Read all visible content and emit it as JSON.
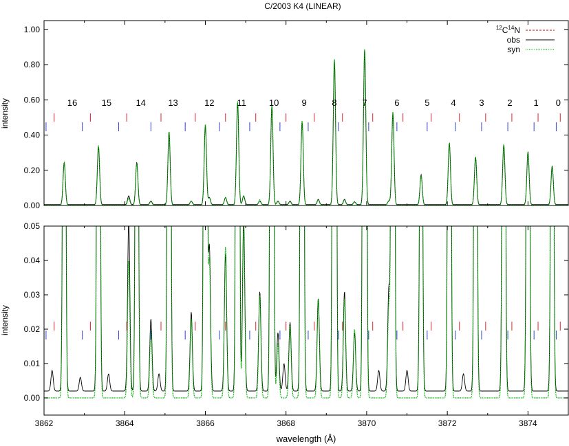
{
  "title": "C/2003 K4 (LINEAR)",
  "colors": {
    "c12n14": "#cc0000",
    "obs": "#000000",
    "syn": "#00b000",
    "marker_red": "#e0202c",
    "marker_blue": "#3040c8"
  },
  "chart_data": [
    {
      "type": "line",
      "panel": "top",
      "xlim": [
        3862,
        3875
      ],
      "ylim": [
        0,
        1.05
      ],
      "xlabel": "",
      "ylabel": "intensity",
      "x_ticks": [
        3862,
        3864,
        3866,
        3868,
        3870,
        3872,
        3874
      ],
      "y_ticks": [
        "0.00",
        "0.20",
        "0.40",
        "0.60",
        "0.80",
        "1.00"
      ],
      "y_tick_values": [
        0,
        0.2,
        0.4,
        0.6,
        0.8,
        1.0
      ],
      "legend_position": "top-right",
      "legend": [
        {
          "label_main": "C",
          "sup1": "12",
          "sup2": "14",
          "label_tail": "N",
          "style": "dashed",
          "color": "#cc0000"
        },
        {
          "label": "obs",
          "style": "solid",
          "color": "#000000"
        },
        {
          "label": "syn",
          "style": "dotted",
          "color": "#00b000"
        }
      ],
      "line_numbers": [
        "16",
        "15",
        "14",
        "13",
        "12",
        "11",
        "10",
        "9",
        "8",
        "7",
        "6",
        "5",
        "4",
        "3",
        "2",
        "1",
        "0"
      ],
      "line_number_x": [
        3862.7,
        3863.55,
        3864.4,
        3865.2,
        3866.1,
        3866.9,
        3867.7,
        3868.45,
        3869.2,
        3869.95,
        3870.75,
        3871.5,
        3872.15,
        3872.85,
        3873.55,
        3874.2,
        3874.75
      ],
      "series": [
        {
          "name": "obs",
          "baseline": 0.005,
          "peaks": [
            [
              3862.5,
              0.24
            ],
            [
              3863.35,
              0.33
            ],
            [
              3864.1,
              0.05
            ],
            [
              3864.3,
              0.24
            ],
            [
              3864.65,
              0.02
            ],
            [
              3865.1,
              0.41
            ],
            [
              3865.65,
              0.02
            ],
            [
              3866.0,
              0.45
            ],
            [
              3866.1,
              0.04
            ],
            [
              3866.5,
              0.04
            ],
            [
              3866.8,
              0.58
            ],
            [
              3866.95,
              0.05
            ],
            [
              3867.35,
              0.02
            ],
            [
              3867.65,
              0.56
            ],
            [
              3867.8,
              0.02
            ],
            [
              3868.1,
              0.02
            ],
            [
              3868.4,
              0.47
            ],
            [
              3868.8,
              0.03
            ],
            [
              3869.2,
              0.82
            ],
            [
              3869.45,
              0.03
            ],
            [
              3869.7,
              0.015
            ],
            [
              3869.95,
              0.88
            ],
            [
              3870.55,
              0.02
            ],
            [
              3870.65,
              0.52
            ],
            [
              3871.35,
              0.17
            ],
            [
              3872.05,
              0.35
            ],
            [
              3872.7,
              0.27
            ],
            [
              3873.4,
              0.34
            ],
            [
              3874.0,
              0.3
            ],
            [
              3874.6,
              0.22
            ]
          ]
        },
        {
          "name": "syn",
          "baseline": 0.002,
          "peaks": [
            [
              3862.5,
              0.24
            ],
            [
              3863.35,
              0.34
            ],
            [
              3864.1,
              0.04
            ],
            [
              3864.3,
              0.24
            ],
            [
              3864.65,
              0.02
            ],
            [
              3865.1,
              0.42
            ],
            [
              3865.65,
              0.023
            ],
            [
              3866.0,
              0.46
            ],
            [
              3866.1,
              0.04
            ],
            [
              3866.5,
              0.044
            ],
            [
              3866.8,
              0.59
            ],
            [
              3866.95,
              0.05
            ],
            [
              3867.35,
              0.03
            ],
            [
              3867.65,
              0.57
            ],
            [
              3867.8,
              0.02
            ],
            [
              3868.1,
              0.02
            ],
            [
              3868.4,
              0.48
            ],
            [
              3868.8,
              0.03
            ],
            [
              3869.2,
              0.83
            ],
            [
              3869.45,
              0.03
            ],
            [
              3869.7,
              0.02
            ],
            [
              3869.95,
              0.89
            ],
            [
              3870.55,
              0.027
            ],
            [
              3870.65,
              0.53
            ],
            [
              3871.35,
              0.17
            ],
            [
              3872.05,
              0.35
            ],
            [
              3872.7,
              0.27
            ],
            [
              3873.4,
              0.34
            ],
            [
              3874.0,
              0.3
            ],
            [
              3874.6,
              0.22
            ]
          ]
        }
      ],
      "markers_red": [
        3862.25,
        3863.15,
        3864.05,
        3864.9,
        3865.75,
        3866.5,
        3867.25,
        3868.0,
        3868.7,
        3869.4,
        3870.15,
        3870.9,
        3871.6,
        3872.3,
        3872.95,
        3873.6,
        3874.25,
        3874.8
      ],
      "markers_blue": [
        3862.05,
        3862.95,
        3863.85,
        3864.65,
        3865.5,
        3866.35,
        3867.1,
        3867.85,
        3868.55,
        3869.3,
        3870.05,
        3870.75,
        3871.5,
        3872.2,
        3872.85,
        3873.5,
        3874.15,
        3874.7
      ]
    },
    {
      "type": "line",
      "panel": "bottom",
      "xlim": [
        3862,
        3875
      ],
      "ylim": [
        -0.005,
        0.05
      ],
      "xlabel": "wavelength (Å)",
      "ylabel": "intensity",
      "x_ticks": [
        "3862",
        "3864",
        "3866",
        "3868",
        "3870",
        "3872",
        "3874"
      ],
      "x_tick_values": [
        3862,
        3864,
        3866,
        3868,
        3870,
        3872,
        3874
      ],
      "y_ticks": [
        "0.00",
        "0.01",
        "0.02",
        "0.03",
        "0.04",
        "0.05"
      ],
      "y_tick_values": [
        0,
        0.01,
        0.02,
        0.03,
        0.04,
        0.05
      ],
      "series": [
        {
          "name": "obs",
          "baseline": 0.002,
          "peaks": [
            [
              3862.2,
              0.006
            ],
            [
              3862.5,
              0.24
            ],
            [
              3862.9,
              0.004
            ],
            [
              3863.35,
              0.33
            ],
            [
              3863.6,
              0.005
            ],
            [
              3864.1,
              0.05
            ],
            [
              3864.3,
              0.24
            ],
            [
              3864.65,
              0.021
            ],
            [
              3864.85,
              0.005
            ],
            [
              3865.1,
              0.41
            ],
            [
              3865.65,
              0.023
            ],
            [
              3866.0,
              0.45
            ],
            [
              3866.1,
              0.042
            ],
            [
              3866.5,
              0.04
            ],
            [
              3866.8,
              0.58
            ],
            [
              3866.95,
              0.05
            ],
            [
              3867.35,
              0.029
            ],
            [
              3867.65,
              0.56
            ],
            [
              3867.8,
              0.017
            ],
            [
              3867.95,
              0.008
            ],
            [
              3868.1,
              0.02
            ],
            [
              3868.4,
              0.47
            ],
            [
              3868.8,
              0.027
            ],
            [
              3869.2,
              0.82
            ],
            [
              3869.45,
              0.029
            ],
            [
              3869.7,
              0.017
            ],
            [
              3869.95,
              0.88
            ],
            [
              3870.3,
              0.006
            ],
            [
              3870.55,
              0.03
            ],
            [
              3870.65,
              0.52
            ],
            [
              3871.0,
              0.006
            ],
            [
              3871.35,
              0.17
            ],
            [
              3872.05,
              0.35
            ],
            [
              3872.4,
              0.005
            ],
            [
              3872.7,
              0.27
            ],
            [
              3873.4,
              0.34
            ],
            [
              3874.0,
              0.3
            ],
            [
              3874.6,
              0.22
            ]
          ]
        },
        {
          "name": "syn",
          "baseline": 0.0,
          "peaks": [
            [
              3862.5,
              0.24
            ],
            [
              3863.35,
              0.34
            ],
            [
              3864.1,
              0.04
            ],
            [
              3864.3,
              0.24
            ],
            [
              3864.65,
              0.02
            ],
            [
              3865.1,
              0.42
            ],
            [
              3865.65,
              0.023
            ],
            [
              3866.0,
              0.46
            ],
            [
              3866.1,
              0.04
            ],
            [
              3866.5,
              0.044
            ],
            [
              3866.8,
              0.59
            ],
            [
              3866.95,
              0.05
            ],
            [
              3867.35,
              0.03
            ],
            [
              3867.65,
              0.57
            ],
            [
              3867.8,
              0.016
            ],
            [
              3868.1,
              0.021
            ],
            [
              3868.4,
              0.48
            ],
            [
              3868.8,
              0.029
            ],
            [
              3869.2,
              0.83
            ],
            [
              3869.45,
              0.029
            ],
            [
              3869.7,
              0.02
            ],
            [
              3869.95,
              0.89
            ],
            [
              3870.55,
              0.027
            ],
            [
              3870.65,
              0.53
            ],
            [
              3871.35,
              0.17
            ],
            [
              3872.05,
              0.35
            ],
            [
              3872.7,
              0.27
            ],
            [
              3873.4,
              0.34
            ],
            [
              3874.0,
              0.3
            ],
            [
              3874.6,
              0.22
            ]
          ]
        }
      ],
      "markers_red": [
        3862.25,
        3863.15,
        3864.05,
        3864.9,
        3865.75,
        3866.5,
        3867.25,
        3868.0,
        3868.7,
        3869.4,
        3870.15,
        3870.9,
        3871.6,
        3872.3,
        3872.95,
        3873.6,
        3874.25,
        3874.8
      ],
      "markers_blue": [
        3862.05,
        3862.95,
        3863.85,
        3864.65,
        3865.5,
        3866.35,
        3867.1,
        3867.85,
        3868.55,
        3869.3,
        3870.05,
        3870.75,
        3871.5,
        3872.2,
        3872.85,
        3873.5,
        3874.15,
        3874.7
      ]
    }
  ]
}
